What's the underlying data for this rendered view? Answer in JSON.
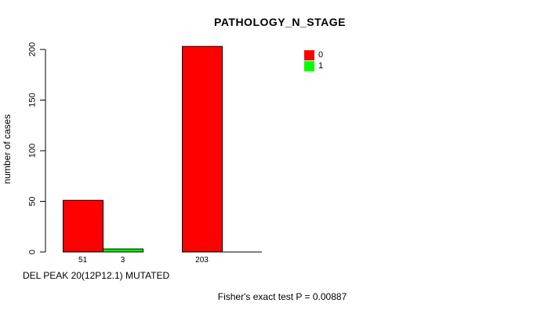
{
  "page": {
    "background": "#ffffff"
  },
  "chart_data": {
    "type": "bar",
    "title": "PATHOLOGY_N_STAGE",
    "ylabel": "number of cases",
    "xlabel": "DEL PEAK 20(12P12.1) MUTATED",
    "footnote": "Fisher's exact test P = 0.00887",
    "ylim": [
      0,
      200
    ],
    "yticks": [
      0,
      50,
      100,
      150,
      200
    ],
    "grid": false,
    "legend_position": "top-right",
    "legend": [
      {
        "label": "0",
        "color": "#ff0000"
      },
      {
        "label": "1",
        "color": "#00ff00"
      }
    ],
    "series": [
      {
        "name": "0",
        "color": "#ff0000",
        "values": [
          51,
          203
        ]
      },
      {
        "name": "1",
        "color": "#00ff00",
        "values": [
          3,
          0
        ]
      }
    ],
    "bar_value_labels": [
      [
        "51",
        "3"
      ],
      [
        "203",
        ""
      ]
    ],
    "colors": {
      "bar_border": "#000000",
      "axis": "#000000",
      "text": "#000000"
    }
  }
}
